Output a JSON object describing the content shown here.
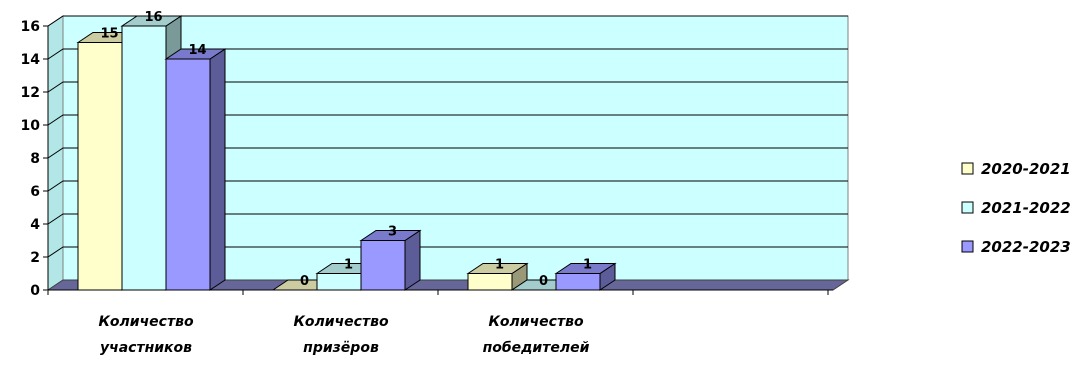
{
  "chart_data": {
    "type": "bar",
    "categories": [
      [
        "Количество",
        "участников"
      ],
      [
        "Количество",
        "призёров"
      ],
      [
        "Количество",
        "победителей"
      ]
    ],
    "series": [
      {
        "name": "2020-2021",
        "values": [
          15,
          0,
          1
        ],
        "color": "#FFFFCC"
      },
      {
        "name": "2021-2022",
        "values": [
          16,
          1,
          0
        ],
        "color": "#CCFFFF"
      },
      {
        "name": "2022-2023",
        "values": [
          14,
          3,
          1
        ],
        "color": "#9999FF"
      }
    ],
    "ylim": [
      0,
      16
    ],
    "yticks": [
      "0",
      "2",
      "4",
      "6",
      "8",
      "10",
      "12",
      "14",
      "16"
    ],
    "grid": true,
    "legend_position": "right",
    "background_color": "#CCFFFF",
    "floor_color": "#666699"
  }
}
